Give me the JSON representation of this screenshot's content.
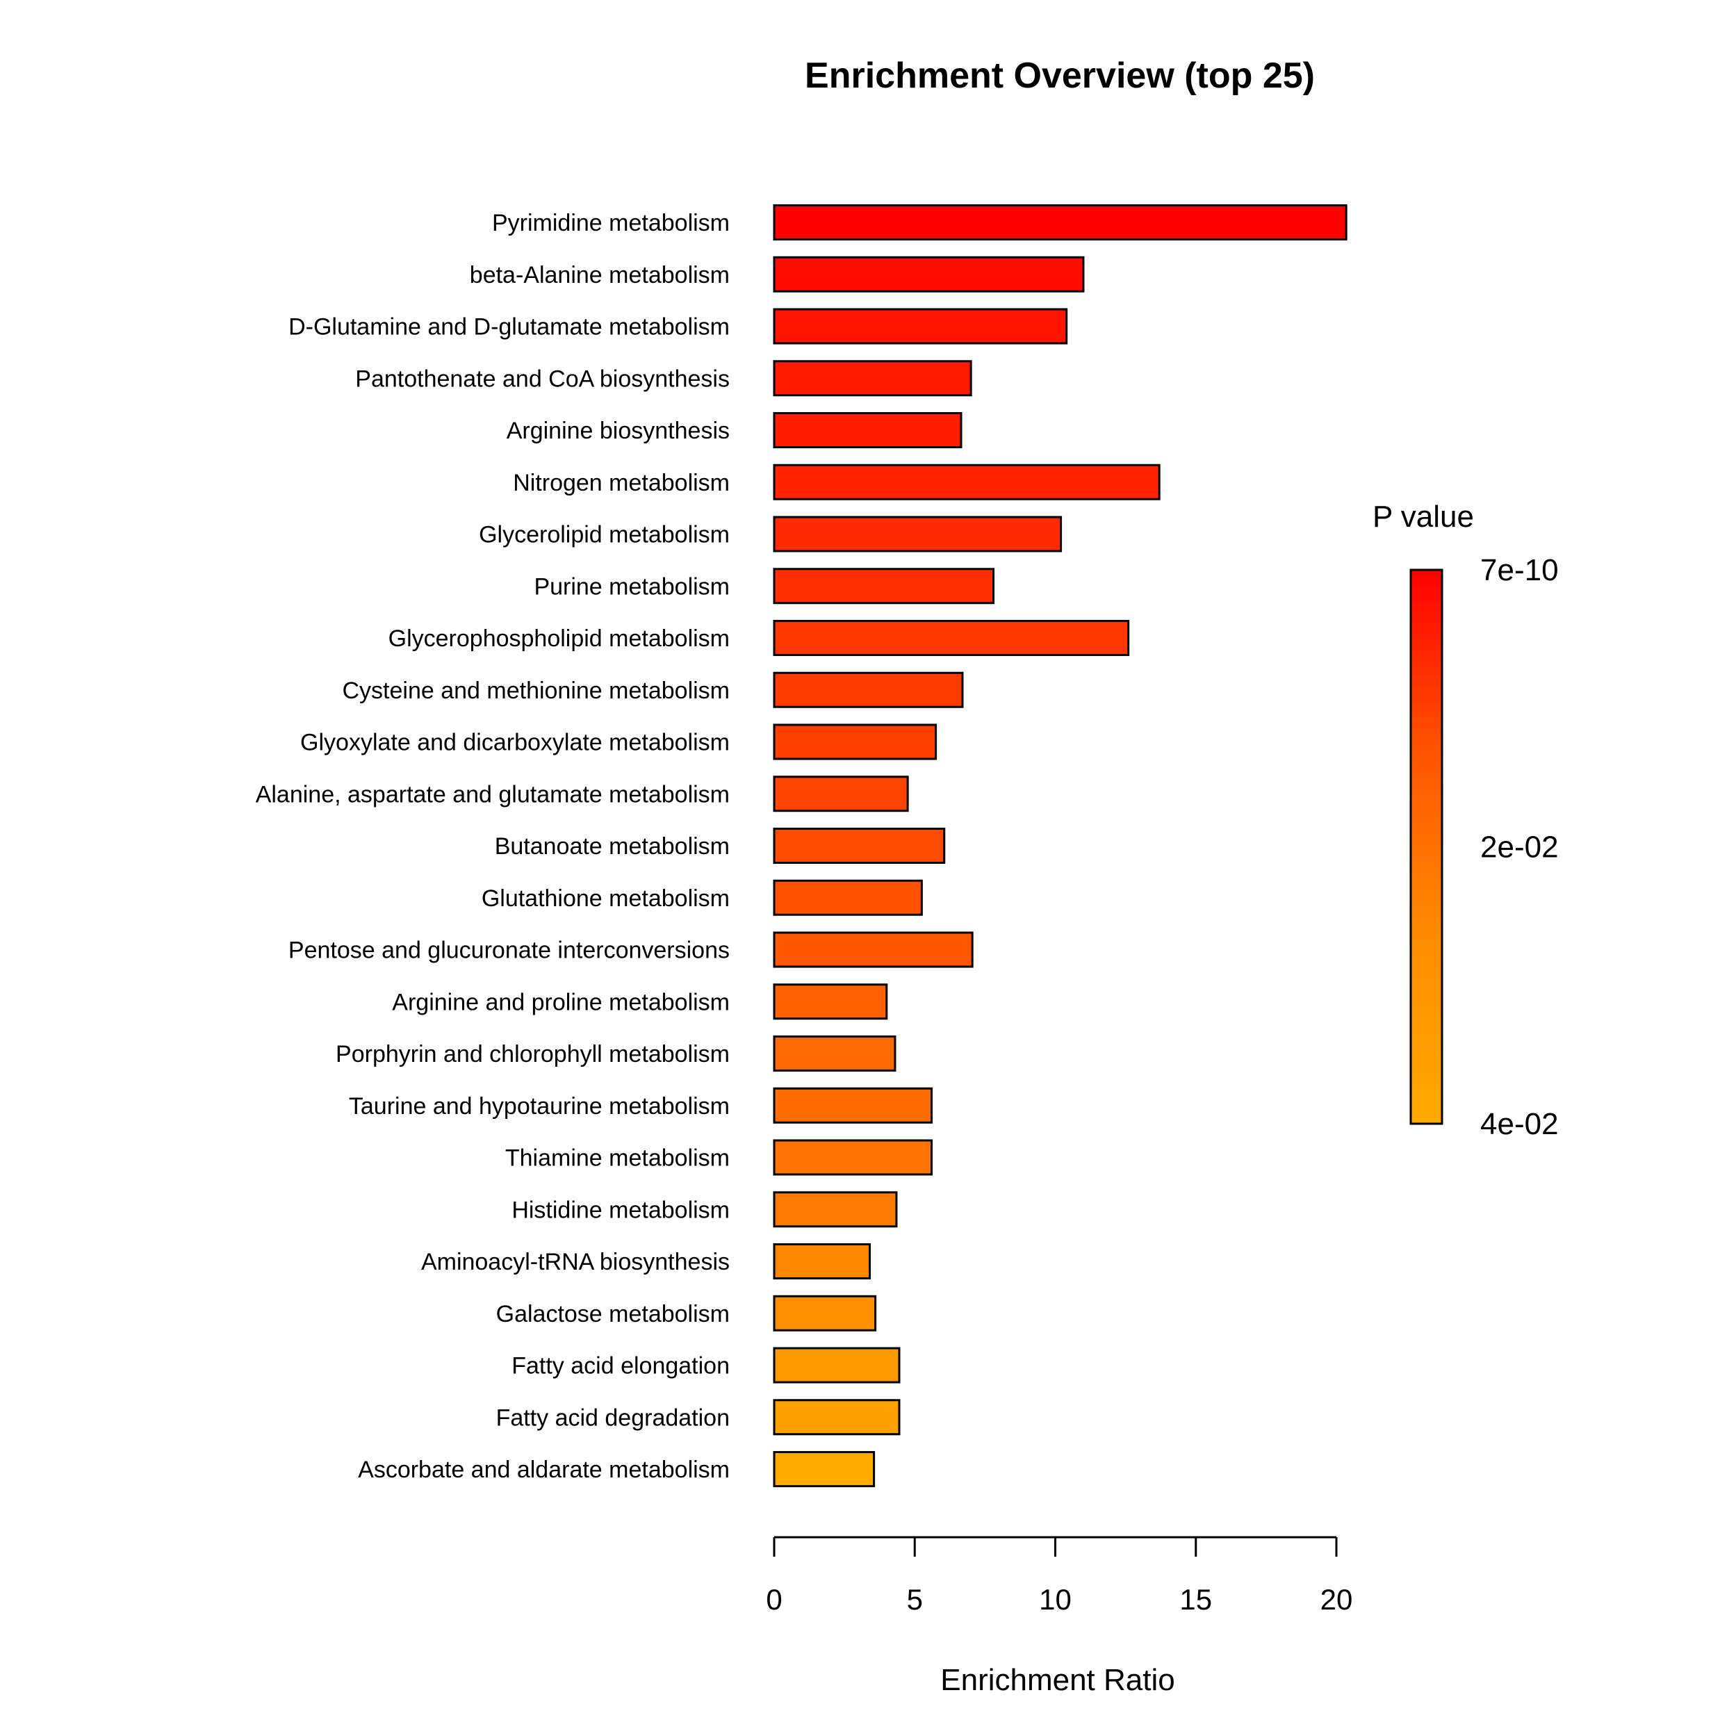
{
  "chart_data": {
    "type": "bar",
    "orientation": "horizontal",
    "title": "Enrichment Overview (top 25)",
    "xlabel": "Enrichment Ratio",
    "xlim": [
      0,
      20
    ],
    "xticks": [
      "0",
      "5",
      "10",
      "15",
      "20"
    ],
    "categories": [
      "Pyrimidine metabolism",
      "beta-Alanine metabolism",
      "D-Glutamine and D-glutamate metabolism",
      "Pantothenate and CoA biosynthesis",
      "Arginine biosynthesis",
      "Nitrogen metabolism",
      "Glycerolipid metabolism",
      "Purine metabolism",
      "Glycerophospholipid metabolism",
      "Cysteine and methionine metabolism",
      "Glyoxylate and dicarboxylate metabolism",
      "Alanine, aspartate and glutamate metabolism",
      "Butanoate metabolism",
      "Glutathione metabolism",
      "Pentose and glucuronate interconversions",
      "Arginine and proline metabolism",
      "Porphyrin and chlorophyll metabolism",
      "Taurine and hypotaurine metabolism",
      "Thiamine metabolism",
      "Histidine metabolism",
      "Aminoacyl-tRNA biosynthesis",
      "Galactose metabolism",
      "Fatty acid elongation",
      "Fatty acid degradation",
      "Ascorbate and aldarate metabolism"
    ],
    "values": [
      20.35,
      11.0,
      10.4,
      7.0,
      6.65,
      13.7,
      10.2,
      7.8,
      12.6,
      6.7,
      5.75,
      4.75,
      6.05,
      5.25,
      7.05,
      4.0,
      4.3,
      5.6,
      5.6,
      4.35,
      3.4,
      3.6,
      4.45,
      4.45,
      3.55
    ],
    "colors": [
      "#ff0000",
      "#ff0c00",
      "#ff1400",
      "#ff1a00",
      "#ff1f00",
      "#ff2400",
      "#ff2a00",
      "#ff2f00",
      "#ff3600",
      "#ff3b00",
      "#ff4000",
      "#ff4500",
      "#ff4b00",
      "#ff5200",
      "#ff5800",
      "#ff6000",
      "#ff6700",
      "#ff6d00",
      "#ff7400",
      "#ff7a00",
      "#ff8600",
      "#ff8f00",
      "#ff9a00",
      "#ffa200",
      "#ffaa00"
    ],
    "legend": {
      "title": "P value",
      "position": "right",
      "labels": [
        "7e-10",
        "2e-02",
        "4e-02"
      ],
      "gradient": [
        "#ff0000",
        "#ff5500",
        "#ff8c00",
        "#ffaa00"
      ]
    }
  }
}
